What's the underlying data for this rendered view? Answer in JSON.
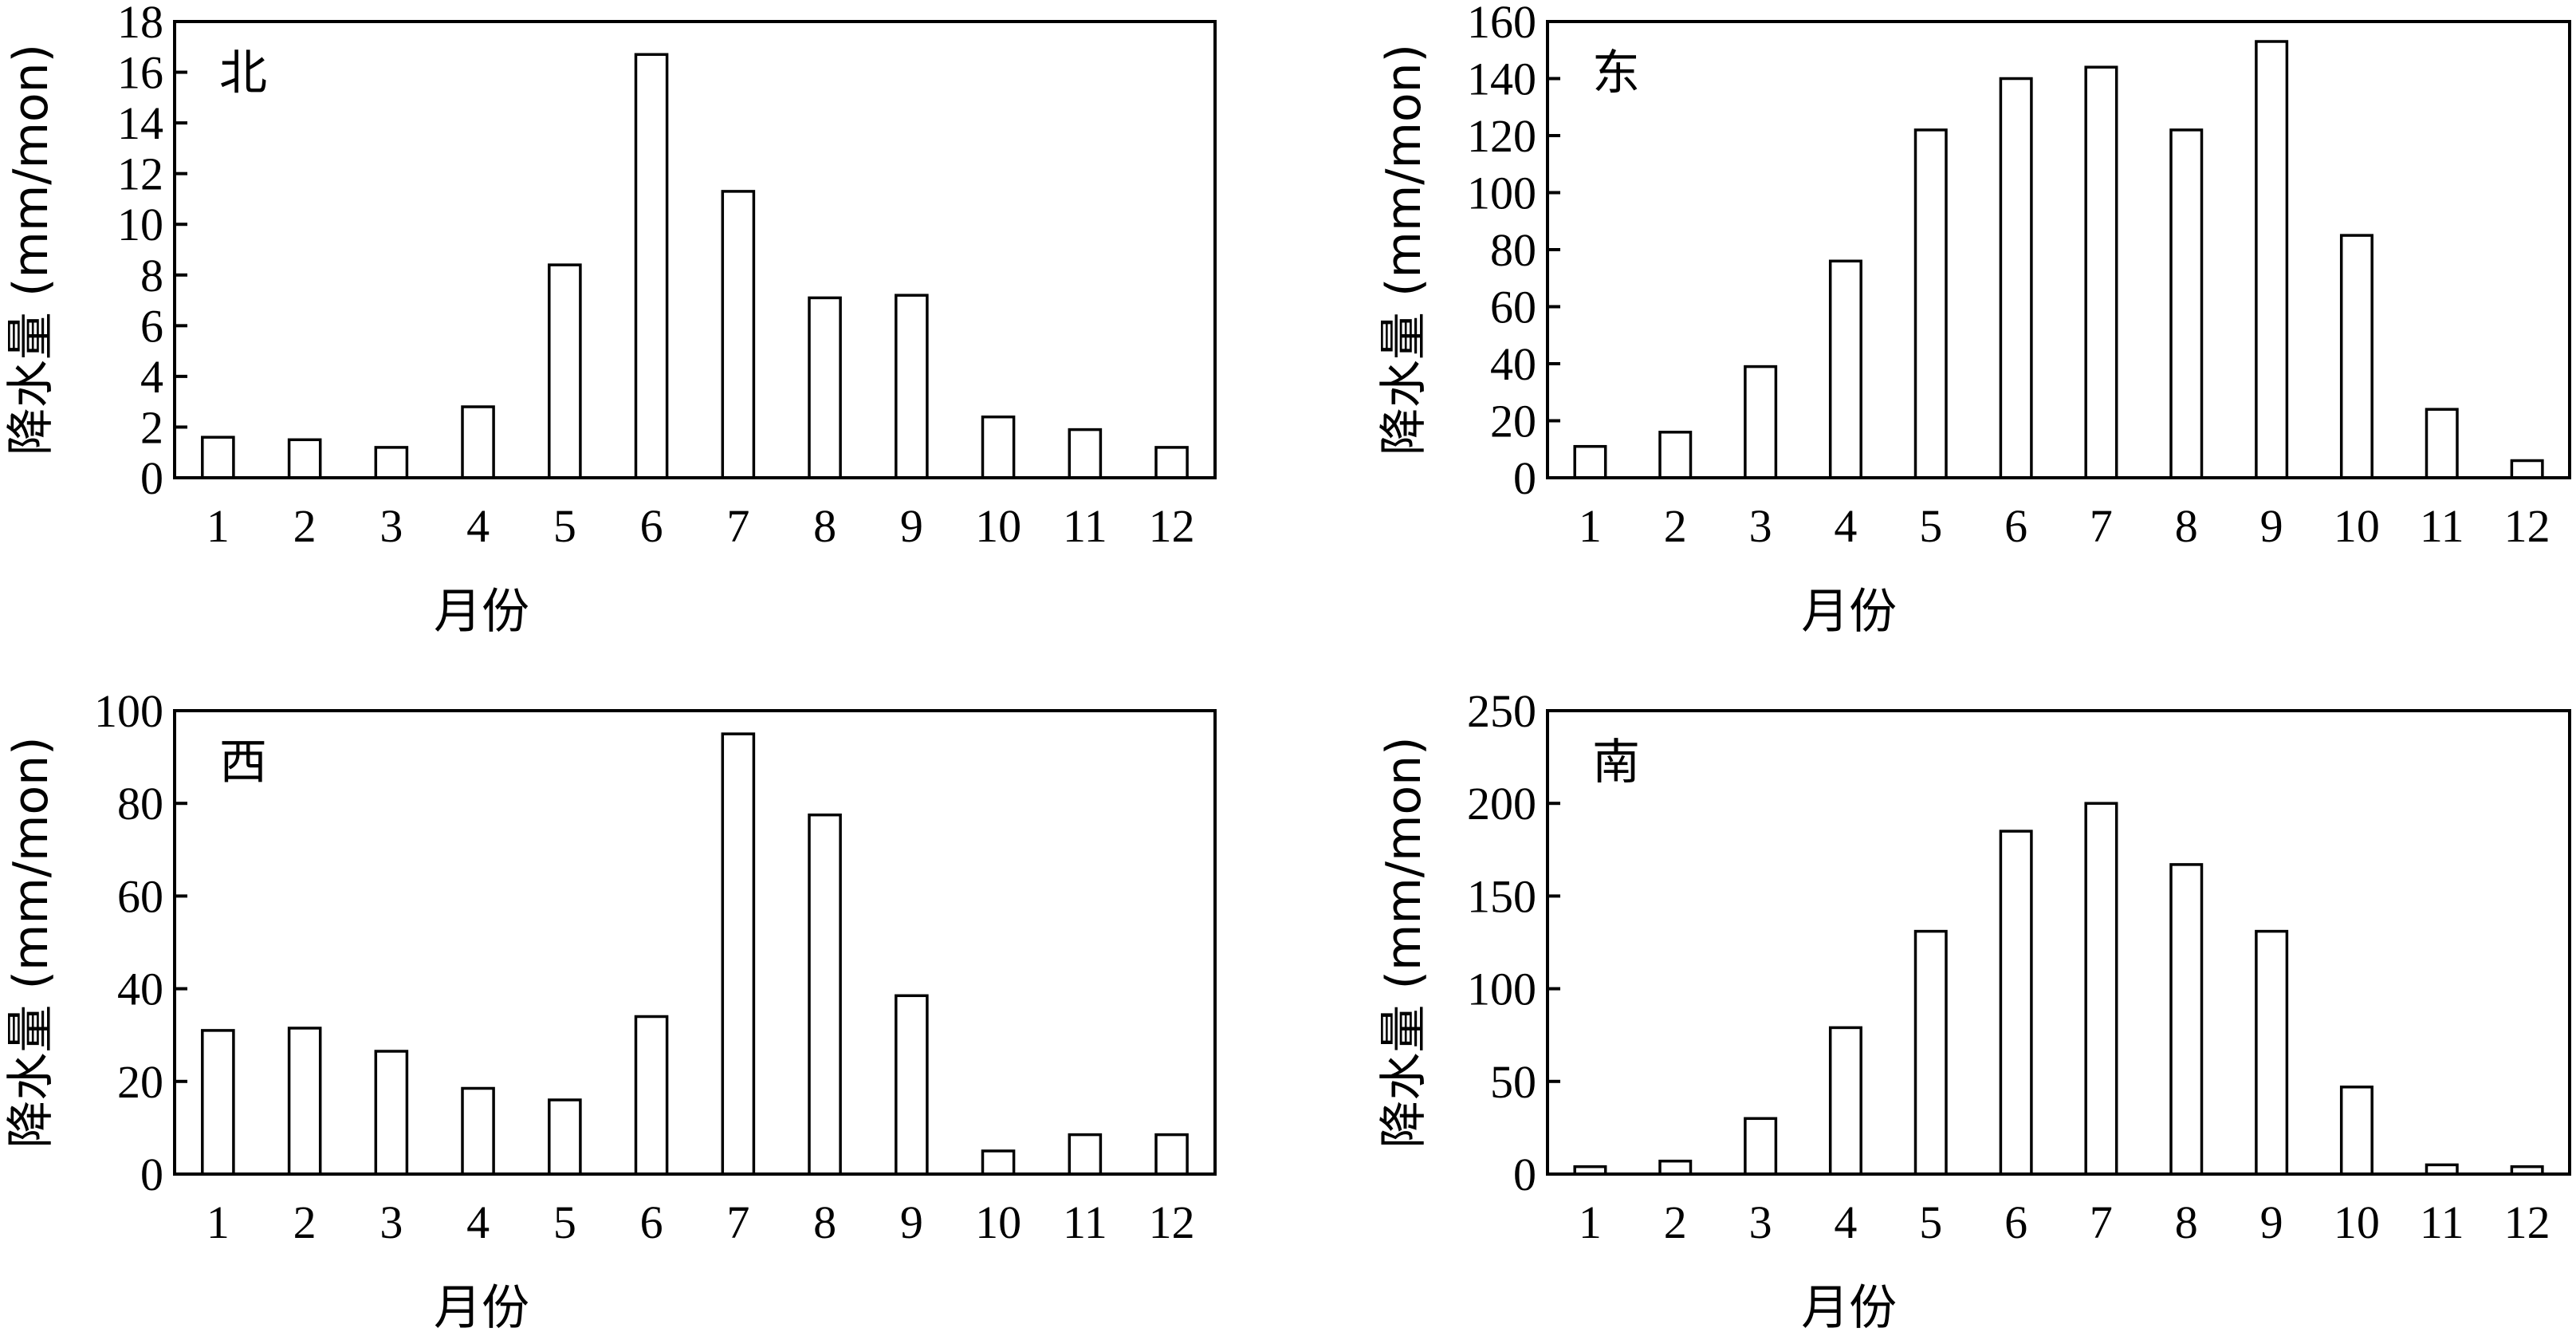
{
  "chart_data": [
    {
      "type": "bar",
      "panel_label": "北",
      "categories": [
        "1",
        "2",
        "3",
        "4",
        "5",
        "6",
        "7",
        "8",
        "9",
        "10",
        "11",
        "12"
      ],
      "values": [
        1.6,
        1.5,
        1.2,
        2.8,
        8.4,
        16.7,
        11.3,
        7.1,
        7.2,
        2.4,
        1.9,
        1.2
      ],
      "xlabel": "月份",
      "ylabel": "降水量 (mm/mon)",
      "ylim": [
        0,
        18
      ],
      "yticks": [
        0,
        2,
        4,
        6,
        8,
        10,
        12,
        14,
        16,
        18
      ]
    },
    {
      "type": "bar",
      "panel_label": "东",
      "categories": [
        "1",
        "2",
        "3",
        "4",
        "5",
        "6",
        "7",
        "8",
        "9",
        "10",
        "11",
        "12"
      ],
      "values": [
        11,
        16,
        39,
        76,
        122,
        140,
        144,
        122,
        153,
        85,
        24,
        6
      ],
      "xlabel": "月份",
      "ylabel": "降水量 (mm/mon)",
      "ylim": [
        0,
        160
      ],
      "yticks": [
        0,
        20,
        40,
        60,
        80,
        100,
        120,
        140,
        160
      ]
    },
    {
      "type": "bar",
      "panel_label": "西",
      "categories": [
        "1",
        "2",
        "3",
        "4",
        "5",
        "6",
        "7",
        "8",
        "9",
        "10",
        "11",
        "12"
      ],
      "values": [
        31,
        31.5,
        26.5,
        18.5,
        16,
        34,
        95,
        77.5,
        38.5,
        5,
        8.5,
        8.5
      ],
      "xlabel": "月份",
      "ylabel": "降水量 (mm/mon)",
      "ylim": [
        0,
        100
      ],
      "yticks": [
        0,
        20,
        40,
        60,
        80,
        100
      ]
    },
    {
      "type": "bar",
      "panel_label": "南",
      "categories": [
        "1",
        "2",
        "3",
        "4",
        "5",
        "6",
        "7",
        "8",
        "9",
        "10",
        "11",
        "12"
      ],
      "values": [
        4,
        7,
        30,
        79,
        131,
        185,
        200,
        167,
        131,
        47,
        5,
        4
      ],
      "xlabel": "月份",
      "ylabel": "降水量 (mm/mon)",
      "ylim": [
        0,
        250
      ],
      "yticks": [
        0,
        50,
        100,
        150,
        200,
        250
      ]
    }
  ]
}
